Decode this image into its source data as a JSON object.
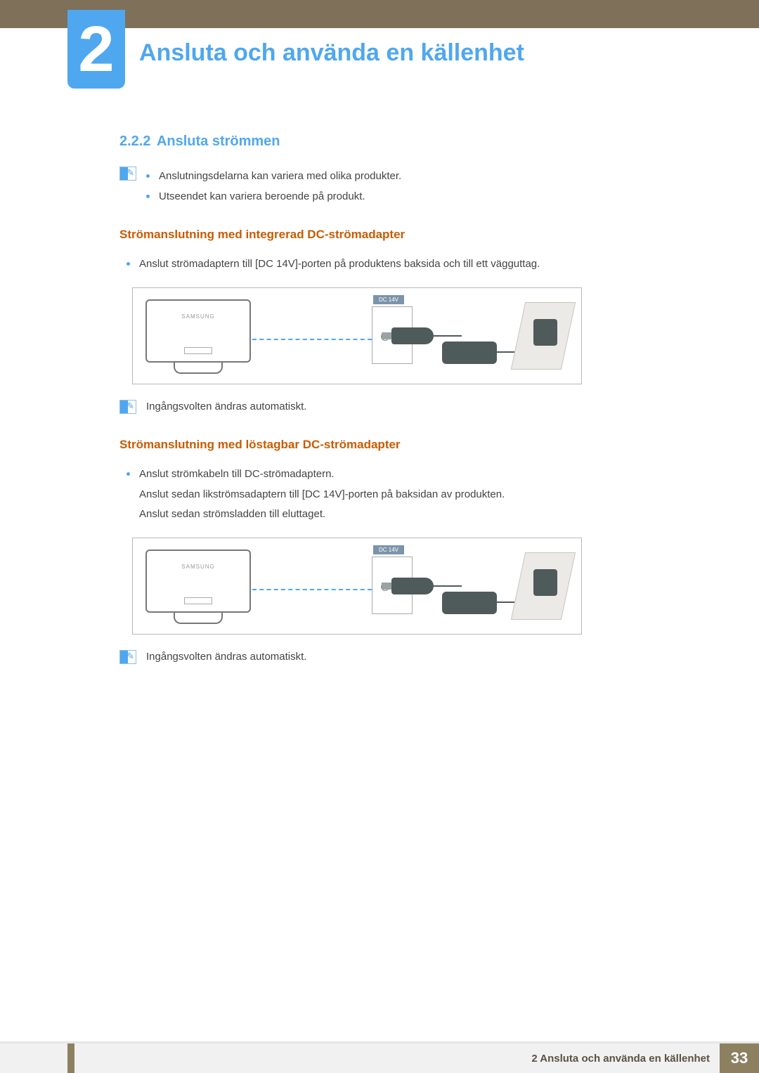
{
  "chapter": {
    "number": "2",
    "title": "Ansluta och använda en källenhet"
  },
  "section": {
    "number": "2.2.2",
    "title": "Ansluta strömmen"
  },
  "top_notes": [
    "Anslutningsdelarna kan variera med olika produkter.",
    "Utseendet kan variera beroende på produkt."
  ],
  "sub1": {
    "heading": "Strömanslutning med integrerad DC-strömadapter",
    "bullet": "Anslut strömadaptern till [DC 14V]-porten på produktens baksida och till ett vägguttag.",
    "diagram": {
      "port_label": "DC 14V",
      "brand": "SAMSUNG",
      "colors": {
        "accent": "#4fa7ef",
        "device": "#4f5b5a",
        "wall": "#eceae6"
      }
    },
    "note": "Ingångsvolten ändras automatiskt."
  },
  "sub2": {
    "heading": "Strömanslutning med löstagbar DC-strömadapter",
    "bullet": "Anslut strömkabeln till DC-strömadaptern.",
    "line2": "Anslut sedan likströmsadaptern till [DC 14V]-porten på baksidan av produkten.",
    "line3": "Anslut sedan strömsladden till eluttaget.",
    "diagram": {
      "port_label": "DC 14V",
      "brand": "SAMSUNG",
      "colors": {
        "accent": "#4fa7ef",
        "device": "#4f5b5a",
        "wall": "#eceae6"
      }
    },
    "note": "Ingångsvolten ändras automatiskt."
  },
  "footer": {
    "text": "2 Ansluta och använda en källenhet",
    "page": "33"
  }
}
